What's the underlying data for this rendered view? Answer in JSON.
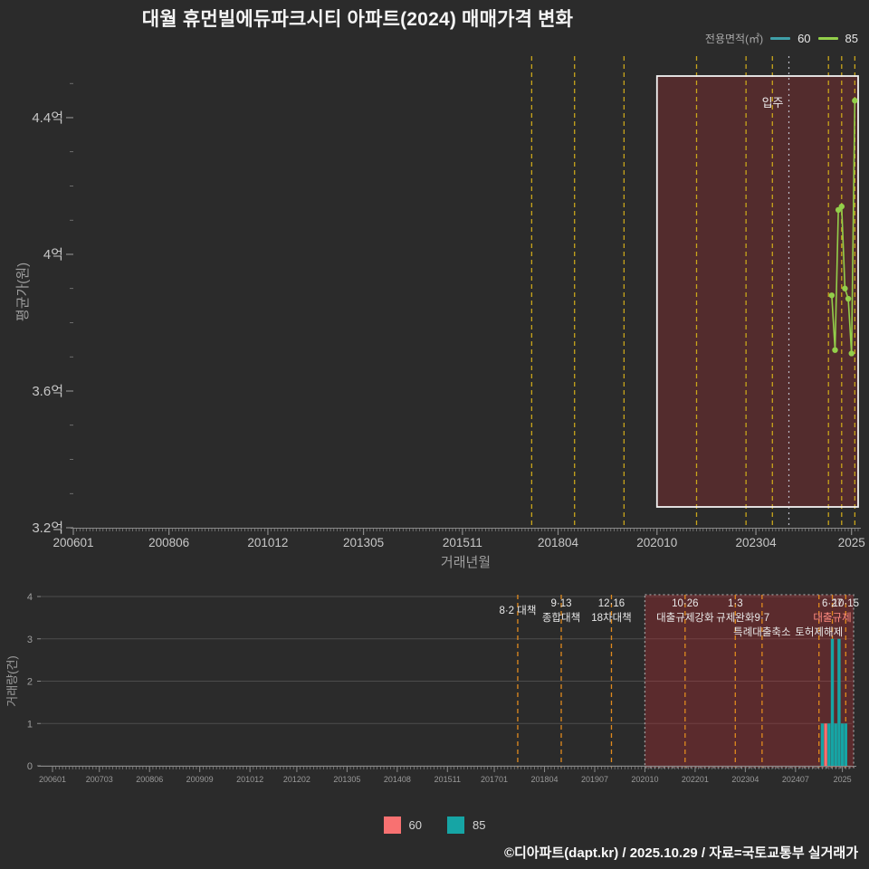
{
  "title": "대월 휴먼빌에듀파크시티 아파트(2024) 매매가격 변화",
  "legend_top": {
    "label": "전용면적(㎡)",
    "items": [
      {
        "name": "60",
        "color": "#3f9fa8"
      },
      {
        "name": "85",
        "color": "#93cf4a"
      }
    ]
  },
  "legend_bottom": {
    "items": [
      {
        "name": "60",
        "color": "#f87171"
      },
      {
        "name": "85",
        "color": "#16a5a5"
      }
    ]
  },
  "footer": "©디아파트(dapt.kr) / 2025.10.29 / 자료=국토교통부 실거래가",
  "colors": {
    "background": "#2b2b2b",
    "axis": "#8a8a8a",
    "tick_label": "#c7c7c7",
    "muted_label": "#9e9e9e",
    "grid": "#4c4c4c",
    "event_line_top": "#c9a51b",
    "event_line_bottom": "#e08a1e",
    "region_fill_top": "rgba(185,45,50,0.28)",
    "region_fill_bottom": "rgba(185,45,50,0.34)",
    "region_border_top": "#f2f2f2",
    "region_border_bottom": "#a0a0a0",
    "move_in_line": "#b9b9c4",
    "annotation": "#e8e8e8",
    "annotation_alert": "#ff8a80",
    "series_60": "#3f9fa8",
    "series_85": "#93cf4a",
    "bar_60": "#f87171",
    "bar_85": "#16a5a5"
  },
  "chart_data": [
    {
      "type": "line",
      "ylabel": "평균가(원)",
      "xlabel": "거래년월",
      "unit": "억",
      "ylim": [
        3.2,
        4.58
      ],
      "yticks": [
        {
          "value": 3.2,
          "label": "3.2억"
        },
        {
          "value": 3.6,
          "label": "3.6억"
        },
        {
          "value": 4,
          "label": "4억"
        },
        {
          "value": 4.4,
          "label": "4.4억"
        }
      ],
      "xticks": [
        {
          "ym": "200601",
          "label": "200601"
        },
        {
          "ym": "200806",
          "label": "200806"
        },
        {
          "ym": "201012",
          "label": "201012"
        },
        {
          "ym": "201305",
          "label": "201305"
        },
        {
          "ym": "201511",
          "label": "201511"
        },
        {
          "ym": "201804",
          "label": "201804"
        },
        {
          "ym": "202010",
          "label": "202010"
        },
        {
          "ym": "202304",
          "label": "202304"
        },
        {
          "ym": "202509",
          "label": "2025"
        }
      ],
      "series": [
        {
          "name": "60",
          "color_key": "series_60",
          "points": []
        },
        {
          "name": "85",
          "color_key": "series_85",
          "points": [
            {
              "ym": "202503",
              "value": 3.88
            },
            {
              "ym": "202504",
              "value": 3.72
            },
            {
              "ym": "202505",
              "value": 4.13
            },
            {
              "ym": "202506",
              "value": 4.14
            },
            {
              "ym": "202507",
              "value": 3.9
            },
            {
              "ym": "202508",
              "value": 3.87
            },
            {
              "ym": "202509",
              "value": 3.71
            },
            {
              "ym": "202510",
              "value": 4.45
            }
          ]
        }
      ],
      "highlight_region": {
        "from": "202010",
        "to": "202511"
      },
      "move_in": {
        "label": "입주",
        "ym": "202402"
      }
    },
    {
      "type": "bar",
      "ylabel": "거래량(건)",
      "ylim": [
        0,
        4
      ],
      "yticks": [
        0,
        1,
        2,
        3,
        4
      ],
      "xticks": [
        {
          "ym": "200601",
          "label": "200601"
        },
        {
          "ym": "200703",
          "label": "200703"
        },
        {
          "ym": "200806",
          "label": "200806"
        },
        {
          "ym": "200909",
          "label": "200909"
        },
        {
          "ym": "201012",
          "label": "201012"
        },
        {
          "ym": "201202",
          "label": "201202"
        },
        {
          "ym": "201305",
          "label": "201305"
        },
        {
          "ym": "201408",
          "label": "201408"
        },
        {
          "ym": "201511",
          "label": "201511"
        },
        {
          "ym": "201701",
          "label": "201701"
        },
        {
          "ym": "201804",
          "label": "201804"
        },
        {
          "ym": "201907",
          "label": "201907"
        },
        {
          "ym": "202010",
          "label": "202010"
        },
        {
          "ym": "202201",
          "label": "202201"
        },
        {
          "ym": "202304",
          "label": "202304"
        },
        {
          "ym": "202407",
          "label": "202407"
        },
        {
          "ym": "202509",
          "label": "2025"
        }
      ],
      "series": [
        {
          "name": "60",
          "color_key": "bar_60",
          "points": [
            {
              "ym": "202504",
              "count": 1
            }
          ]
        },
        {
          "name": "85",
          "color_key": "bar_85",
          "points": [
            {
              "ym": "202503",
              "count": 1
            },
            {
              "ym": "202505",
              "count": 1
            },
            {
              "ym": "202506",
              "count": 3
            },
            {
              "ym": "202507",
              "count": 1
            },
            {
              "ym": "202508",
              "count": 3
            },
            {
              "ym": "202509",
              "count": 1
            },
            {
              "ym": "202510",
              "count": 1
            }
          ]
        }
      ],
      "highlight_region": {
        "from": "202010",
        "to": "202511"
      }
    }
  ],
  "events": [
    {
      "ym": "201708",
      "labels": [
        {
          "text": "8·2 대책",
          "row": 1.5
        }
      ]
    },
    {
      "ym": "201809",
      "labels": [
        {
          "text": "9·13",
          "row": 1
        },
        {
          "text": "종합대책",
          "row": 2
        }
      ]
    },
    {
      "ym": "201912",
      "labels": [
        {
          "text": "12·16",
          "row": 1
        },
        {
          "text": "18차대책",
          "row": 2
        }
      ]
    },
    {
      "ym": "202110",
      "labels": [
        {
          "text": "10·26",
          "row": 1
        },
        {
          "text": "대출규제강화",
          "row": 2
        }
      ]
    },
    {
      "ym": "202301",
      "labels": [
        {
          "text": "1·3",
          "row": 1
        },
        {
          "text": "규제완화",
          "row": 2
        }
      ]
    },
    {
      "ym": "202309",
      "labels": [
        {
          "text": "9·7",
          "row": 2
        },
        {
          "text": "특례대출축소",
          "row": 3
        }
      ]
    },
    {
      "ym": "202502",
      "labels": [
        {
          "text": "토허제해제",
          "row": 3
        }
      ]
    },
    {
      "ym": "202506",
      "labels": [
        {
          "text": "6·27",
          "row": 1
        },
        {
          "text": "대출규제",
          "row": 2,
          "alert": true
        }
      ]
    },
    {
      "ym": "202510",
      "labels": [
        {
          "text": "10·15",
          "row": 1
        }
      ]
    }
  ]
}
